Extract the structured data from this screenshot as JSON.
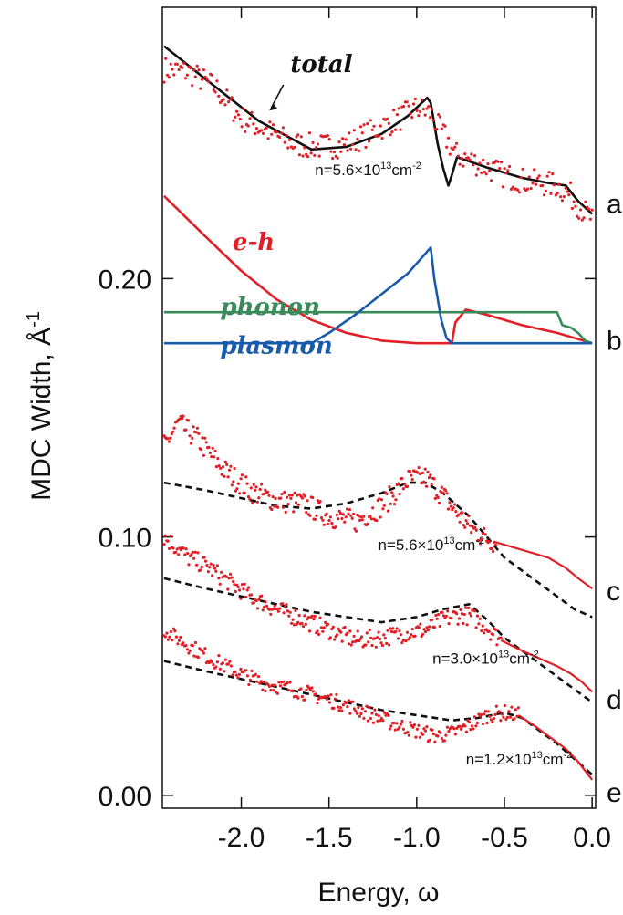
{
  "chart_data": {
    "type": "line",
    "xlabel": "Energy, ω",
    "ylabel": "MDC Width, Å",
    "ylabel_sup": "-1",
    "xlim": [
      -2.45,
      0.02
    ],
    "ylim": [
      -0.005,
      0.305
    ],
    "x_ticks": [
      {
        "value": -2.0,
        "label": "-2.0"
      },
      {
        "value": -1.5,
        "label": "-1.5"
      },
      {
        "value": -1.0,
        "label": "-1.0"
      },
      {
        "value": -0.5,
        "label": "-0.5"
      },
      {
        "value": 0.0,
        "label": "0.0"
      }
    ],
    "y_ticks": [
      {
        "value": 0.0,
        "label": "0.00"
      },
      {
        "value": 0.1,
        "label": "0.10"
      },
      {
        "value": 0.2,
        "label": "0.20"
      }
    ],
    "panel_labels": [
      {
        "label": "a",
        "y": 0.229
      },
      {
        "label": "b",
        "y": 0.176
      },
      {
        "label": "c",
        "y": 0.079
      },
      {
        "label": "d",
        "y": 0.037
      },
      {
        "label": "e",
        "y": 0.001
      }
    ],
    "curve_labels": [
      {
        "text": "total",
        "color": "#111111",
        "x": -1.72,
        "y": 0.28
      },
      {
        "text": "e-h",
        "color": "#e01f26",
        "x": -2.05,
        "y": 0.211
      },
      {
        "text": "phonon",
        "color": "#3a8a5a",
        "x": -2.12,
        "y": 0.186
      },
      {
        "text": "plasmon",
        "color": "#1a5aab",
        "x": -2.12,
        "y": 0.171
      }
    ],
    "annotations": [
      {
        "base": "n=5.6×10",
        "exp": "13",
        "unit": "cm",
        "unit_exp": "-2",
        "x": -1.58,
        "y": 0.24
      },
      {
        "base": "n=5.6×10",
        "exp": "13",
        "unit": "cm",
        "unit_exp": "-2",
        "x": -1.22,
        "y": 0.095
      },
      {
        "base": "n=3.0×10",
        "exp": "13",
        "unit": "cm",
        "unit_exp": "-2",
        "x": -0.91,
        "y": 0.051
      },
      {
        "base": "n=1.2×10",
        "exp": "13",
        "unit": "cm",
        "unit_exp": "-2",
        "x": -0.72,
        "y": 0.012
      }
    ],
    "series": [
      {
        "style": "solid",
        "color": "#111111",
        "x": [
          -2.44,
          -2.2,
          -1.9,
          -1.6,
          -1.4,
          -1.2,
          -1.05,
          -0.94,
          -0.92,
          -0.88,
          -0.85,
          -0.82,
          -0.8,
          -0.77,
          -0.6,
          -0.4,
          -0.25,
          -0.15,
          -0.08,
          0.0
        ],
        "y": [
          0.29,
          0.277,
          0.261,
          0.25,
          0.251,
          0.256,
          0.263,
          0.27,
          0.268,
          0.252,
          0.243,
          0.236,
          0.24,
          0.247,
          0.243,
          0.239,
          0.237,
          0.236,
          0.23,
          0.225
        ]
      },
      {
        "style": "solid",
        "color": "#e01f26",
        "x": [
          -2.44,
          -2.2,
          -2.0,
          -1.8,
          -1.6,
          -1.4,
          -1.2,
          -1.0,
          -0.9,
          -0.8,
          -0.78,
          -0.72,
          -0.6,
          -0.4,
          -0.2,
          -0.1,
          0.0
        ],
        "y": [
          0.232,
          0.216,
          0.203,
          0.192,
          0.184,
          0.179,
          0.176,
          0.175,
          0.175,
          0.175,
          0.183,
          0.188,
          0.186,
          0.182,
          0.179,
          0.177,
          0.175
        ]
      },
      {
        "style": "solid",
        "color": "#3a8a5a",
        "x": [
          -2.44,
          -2.0,
          -1.5,
          -1.0,
          -0.5,
          -0.2,
          -0.17,
          -0.12,
          -0.08,
          -0.04,
          0.0
        ],
        "y": [
          0.187,
          0.187,
          0.187,
          0.187,
          0.187,
          0.187,
          0.182,
          0.181,
          0.179,
          0.176,
          0.175
        ]
      },
      {
        "style": "solid",
        "color": "#1a5aab",
        "x": [
          -2.44,
          -1.6,
          -1.5,
          -1.35,
          -1.2,
          -1.05,
          -0.92,
          -0.9,
          -0.86,
          -0.83,
          -0.8,
          -0.5,
          0.0
        ],
        "y": [
          0.175,
          0.175,
          0.179,
          0.186,
          0.194,
          0.202,
          0.212,
          0.2,
          0.184,
          0.177,
          0.175,
          0.175,
          0.175
        ]
      },
      {
        "style": "dashed",
        "color": "#111111",
        "x": [
          -2.44,
          -2.2,
          -2.0,
          -1.8,
          -1.6,
          -1.4,
          -1.2,
          -1.05,
          -0.95,
          -0.85,
          -0.7,
          -0.6,
          -0.5,
          -0.4,
          -0.3,
          -0.2,
          -0.1,
          0.0
        ],
        "y": [
          0.121,
          0.118,
          0.115,
          0.112,
          0.111,
          0.113,
          0.117,
          0.121,
          0.121,
          0.117,
          0.108,
          0.1,
          0.092,
          0.087,
          0.082,
          0.077,
          0.072,
          0.069
        ]
      },
      {
        "style": "dashed",
        "color": "#111111",
        "x": [
          -2.44,
          -2.2,
          -2.0,
          -1.8,
          -1.6,
          -1.4,
          -1.2,
          -1.0,
          -0.85,
          -0.7,
          -0.6,
          -0.5,
          -0.4,
          -0.3,
          -0.2,
          -0.1,
          0.0
        ],
        "y": [
          0.084,
          0.08,
          0.077,
          0.074,
          0.071,
          0.069,
          0.067,
          0.069,
          0.072,
          0.074,
          0.068,
          0.061,
          0.056,
          0.051,
          0.046,
          0.041,
          0.036
        ]
      },
      {
        "style": "dashed",
        "color": "#111111",
        "x": [
          -2.44,
          -2.2,
          -2.0,
          -1.8,
          -1.6,
          -1.4,
          -1.2,
          -1.0,
          -0.8,
          -0.65,
          -0.5,
          -0.4,
          -0.3,
          -0.2,
          -0.1,
          0.0
        ],
        "y": [
          0.052,
          0.048,
          0.045,
          0.042,
          0.039,
          0.036,
          0.033,
          0.031,
          0.029,
          0.03,
          0.032,
          0.03,
          0.025,
          0.02,
          0.014,
          0.008
        ]
      }
    ],
    "scatter_series": [
      {
        "color": "#e01f26",
        "x": [
          -2.44,
          -2.3,
          -2.15,
          -2.0,
          -1.85,
          -1.7,
          -1.55,
          -1.4,
          -1.25,
          -1.1,
          -1.0,
          -0.92,
          -0.88,
          -0.82,
          -0.78,
          -0.7,
          -0.6,
          -0.5,
          -0.4,
          -0.3,
          -0.2,
          -0.12,
          -0.06,
          0.0
        ],
        "y": [
          0.281,
          0.28,
          0.274,
          0.262,
          0.257,
          0.252,
          0.251,
          0.252,
          0.257,
          0.262,
          0.266,
          0.264,
          0.259,
          0.253,
          0.248,
          0.246,
          0.243,
          0.24,
          0.238,
          0.237,
          0.236,
          0.232,
          0.227,
          0.223
        ],
        "noise": 0.005
      },
      {
        "color": "#e01f26",
        "x": [
          -2.44,
          -2.36,
          -2.25,
          -2.1,
          -1.95,
          -1.8,
          -1.65,
          -1.5,
          -1.35,
          -1.2,
          -1.05,
          -0.95,
          -0.85,
          -0.78,
          -0.7,
          -0.62,
          -0.55
        ],
        "y": [
          0.135,
          0.144,
          0.138,
          0.126,
          0.118,
          0.114,
          0.113,
          0.108,
          0.106,
          0.112,
          0.122,
          0.123,
          0.116,
          0.11,
          0.104,
          0.1,
          0.098
        ],
        "noise": 0.0045
      },
      {
        "color": "#e01f26",
        "x": [
          -2.44,
          -2.3,
          -2.2,
          -2.1,
          -1.95,
          -1.8,
          -1.65,
          -1.5,
          -1.35,
          -1.2,
          -1.05,
          -0.95,
          -0.85,
          -0.75,
          -0.68,
          -0.6,
          -0.52
        ],
        "y": [
          0.1,
          0.092,
          0.089,
          0.084,
          0.077,
          0.072,
          0.068,
          0.064,
          0.06,
          0.061,
          0.063,
          0.064,
          0.068,
          0.07,
          0.069,
          0.065,
          0.06
        ],
        "noise": 0.0035
      },
      {
        "color": "#e01f26",
        "x": [
          -2.44,
          -2.3,
          -2.15,
          -2.0,
          -1.85,
          -1.7,
          -1.55,
          -1.4,
          -1.25,
          -1.1,
          -1.0,
          -0.9,
          -0.8,
          -0.7,
          -0.6,
          -0.5,
          -0.42
        ],
        "y": [
          0.064,
          0.058,
          0.052,
          0.047,
          0.043,
          0.041,
          0.038,
          0.035,
          0.031,
          0.027,
          0.025,
          0.023,
          0.024,
          0.027,
          0.031,
          0.032,
          0.031
        ],
        "noise": 0.003
      }
    ],
    "smooth_red_tails": [
      {
        "color": "#e01f26",
        "x": [
          -0.55,
          -0.45,
          -0.35,
          -0.25,
          -0.15,
          -0.08,
          0.0
        ],
        "y": [
          0.098,
          0.096,
          0.094,
          0.092,
          0.088,
          0.084,
          0.08
        ]
      },
      {
        "color": "#e01f26",
        "x": [
          -0.52,
          -0.4,
          -0.3,
          -0.2,
          -0.12,
          -0.06,
          0.0
        ],
        "y": [
          0.06,
          0.056,
          0.053,
          0.05,
          0.047,
          0.044,
          0.04
        ]
      },
      {
        "color": "#e01f26",
        "x": [
          -0.42,
          -0.33,
          -0.25,
          -0.15,
          -0.08,
          0.0
        ],
        "y": [
          0.031,
          0.027,
          0.023,
          0.018,
          0.013,
          0.006
        ]
      }
    ]
  }
}
